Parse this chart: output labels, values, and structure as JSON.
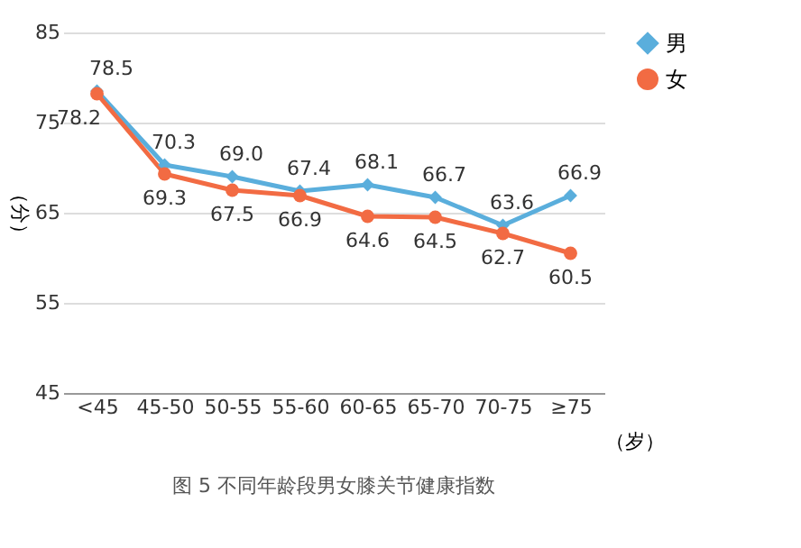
{
  "chart_data": {
    "type": "line",
    "title": "图 5 不同年龄段男女膝关节健康指数",
    "xlabel": "（岁）",
    "ylabel": "（分）",
    "categories": [
      "<45",
      "45-50",
      "50-55",
      "55-60",
      "60-65",
      "65-70",
      "70-75",
      "≥75"
    ],
    "series": [
      {
        "name": "男",
        "color": "#5aaedc",
        "marker": "diamond",
        "values": [
          78.5,
          70.3,
          69.0,
          67.4,
          68.1,
          66.7,
          63.6,
          66.9
        ],
        "value_labels": [
          "78.5",
          "70.3",
          "69.0",
          "67.4",
          "68.1",
          "66.7",
          "63.6",
          "66.9"
        ]
      },
      {
        "name": "女",
        "color": "#f26b43",
        "marker": "circle",
        "values": [
          78.2,
          69.3,
          67.5,
          66.9,
          64.6,
          64.5,
          62.7,
          60.5
        ],
        "value_labels": [
          "78.2",
          "69.3",
          "67.5",
          "66.9",
          "64.6",
          "64.5",
          "62.7",
          "60.5"
        ]
      }
    ],
    "ylim": [
      45,
      85
    ],
    "yticks": [
      45,
      55,
      65,
      75,
      85
    ],
    "grid": "y",
    "legend": "right"
  }
}
